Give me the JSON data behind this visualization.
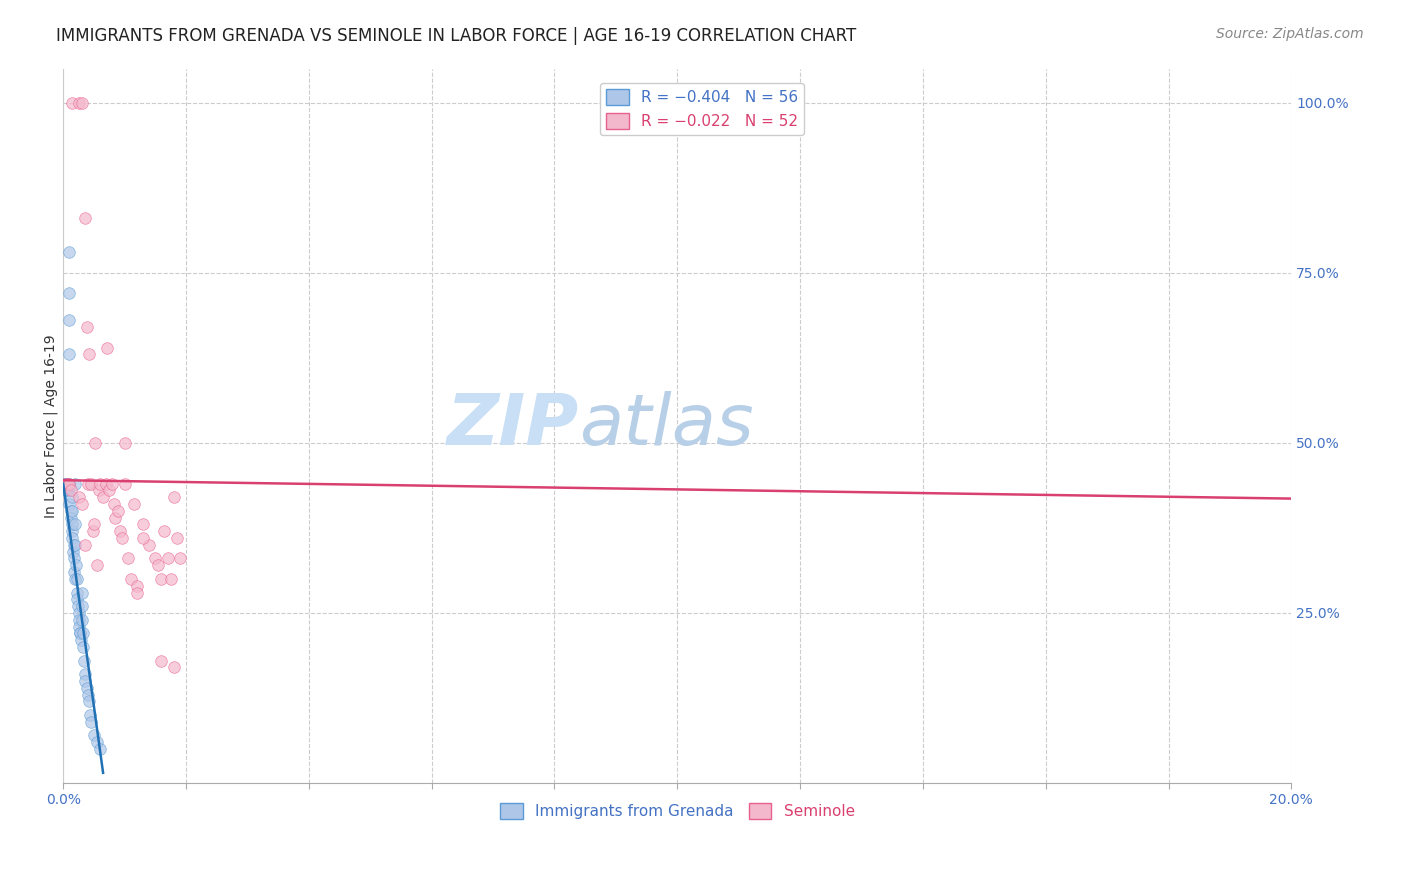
{
  "title": "IMMIGRANTS FROM GRENADA VS SEMINOLE IN LABOR FORCE | AGE 16-19 CORRELATION CHART",
  "source": "Source: ZipAtlas.com",
  "ylabel": "In Labor Force | Age 16-19",
  "xmin": 0.0,
  "xmax": 0.2,
  "ymin": 0.0,
  "ymax": 1.05,
  "right_yticks": [
    1.0,
    0.75,
    0.5,
    0.25
  ],
  "right_ytick_labels": [
    "100.0%",
    "75.0%",
    "50.0%",
    "25.0%"
  ],
  "grid_color": "#cccccc",
  "background_color": "#ffffff",
  "blue_scatter_x": [
    0.0002,
    0.0003,
    0.0004,
    0.0005,
    0.0006,
    0.0007,
    0.0008,
    0.0009,
    0.001,
    0.001,
    0.001,
    0.001,
    0.001,
    0.001,
    0.0012,
    0.0013,
    0.0014,
    0.0015,
    0.0015,
    0.0015,
    0.0015,
    0.0016,
    0.0017,
    0.0018,
    0.0018,
    0.0019,
    0.002,
    0.002,
    0.002,
    0.0021,
    0.0022,
    0.0022,
    0.0023,
    0.0024,
    0.0025,
    0.0025,
    0.0026,
    0.0027,
    0.0028,
    0.0029,
    0.003,
    0.003,
    0.0031,
    0.0032,
    0.0033,
    0.0034,
    0.0035,
    0.0036,
    0.0038,
    0.004,
    0.0042,
    0.0044,
    0.0046,
    0.005,
    0.0055,
    0.006
  ],
  "blue_scatter_y": [
    0.44,
    0.44,
    0.44,
    0.43,
    0.44,
    0.43,
    0.43,
    0.44,
    0.78,
    0.72,
    0.68,
    0.63,
    0.44,
    0.41,
    0.4,
    0.39,
    0.37,
    0.42,
    0.4,
    0.38,
    0.36,
    0.34,
    0.35,
    0.33,
    0.31,
    0.3,
    0.44,
    0.38,
    0.35,
    0.32,
    0.3,
    0.28,
    0.27,
    0.26,
    0.25,
    0.24,
    0.23,
    0.22,
    0.22,
    0.21,
    0.28,
    0.26,
    0.24,
    0.22,
    0.2,
    0.18,
    0.16,
    0.15,
    0.14,
    0.13,
    0.12,
    0.1,
    0.09,
    0.07,
    0.06,
    0.05
  ],
  "pink_scatter_x": [
    0.0015,
    0.0025,
    0.003,
    0.0035,
    0.0038,
    0.004,
    0.0042,
    0.0045,
    0.0048,
    0.005,
    0.0052,
    0.0055,
    0.0058,
    0.006,
    0.0065,
    0.007,
    0.0072,
    0.0075,
    0.008,
    0.0082,
    0.0085,
    0.009,
    0.0092,
    0.0095,
    0.01,
    0.0105,
    0.011,
    0.0115,
    0.012,
    0.013,
    0.014,
    0.015,
    0.0155,
    0.016,
    0.0165,
    0.017,
    0.0175,
    0.018,
    0.0185,
    0.019,
    0.0005,
    0.0008,
    0.001,
    0.0012,
    0.0025,
    0.003,
    0.0035,
    0.01,
    0.012,
    0.013,
    0.016,
    0.018
  ],
  "pink_scatter_y": [
    1.0,
    1.0,
    1.0,
    0.83,
    0.67,
    0.44,
    0.63,
    0.44,
    0.37,
    0.38,
    0.5,
    0.32,
    0.43,
    0.44,
    0.42,
    0.44,
    0.64,
    0.43,
    0.44,
    0.41,
    0.39,
    0.4,
    0.37,
    0.36,
    0.44,
    0.33,
    0.3,
    0.41,
    0.29,
    0.38,
    0.35,
    0.33,
    0.32,
    0.3,
    0.37,
    0.33,
    0.3,
    0.42,
    0.36,
    0.33,
    0.44,
    0.44,
    0.44,
    0.43,
    0.42,
    0.41,
    0.35,
    0.5,
    0.28,
    0.36,
    0.18,
    0.17
  ],
  "blue_trend_x": [
    0.0,
    0.0065
  ],
  "blue_trend_y": [
    0.44,
    0.015
  ],
  "pink_trend_x": [
    0.0,
    0.2
  ],
  "pink_trend_y": [
    0.445,
    0.418
  ],
  "scatter_size": 70,
  "scatter_alpha": 0.7,
  "scatter_blue_color": "#aec6e8",
  "scatter_pink_color": "#f4b8cc",
  "scatter_blue_edge": "#5b9bd5",
  "scatter_pink_edge": "#e86090",
  "trend_blue_color": "#2070b4",
  "trend_pink_color": "#d94070",
  "title_fontsize": 12,
  "axis_label_fontsize": 10,
  "tick_fontsize": 10,
  "legend_fontsize": 11,
  "source_fontsize": 10,
  "watermark_left": "ZIP",
  "watermark_right": "atlas",
  "watermark_color_left": "#c8dff5",
  "watermark_color_right": "#b8cfe8",
  "watermark_fontsize": 52
}
